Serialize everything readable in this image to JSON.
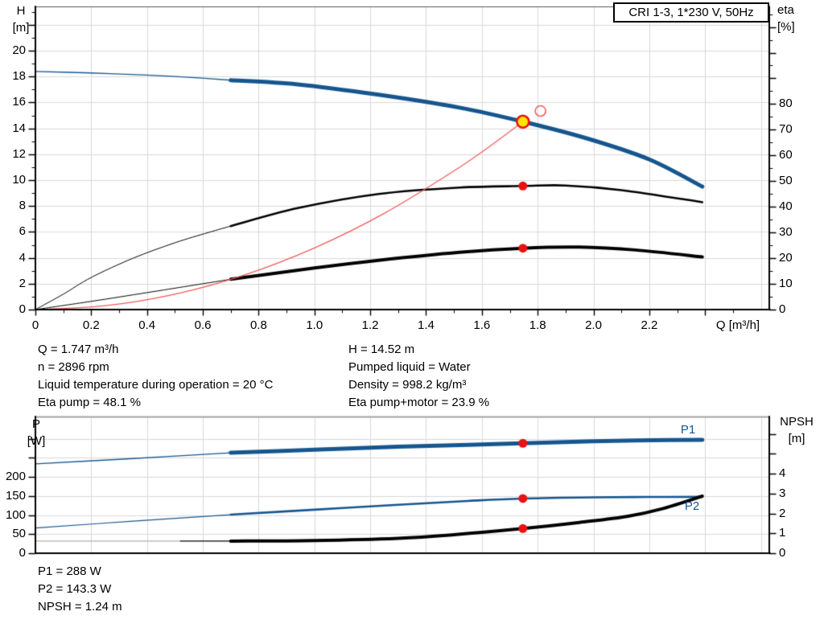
{
  "title_box": {
    "text": "CRI 1-3, 1*230 V, 50Hz"
  },
  "info_panel_top": {
    "left": [
      "Q = 1.747 m³/h",
      "n = 2896 rpm",
      "Liquid temperature during operation = 20 °C",
      "Eta pump = 48.1 %"
    ],
    "right": [
      "H = 14.52 m",
      "Pumped liquid = Water",
      "Density = 998.2 kg/m³",
      "Eta pump+motor = 23.9 %"
    ]
  },
  "info_panel_bottom": {
    "lines": [
      "P1 = 288 W",
      "P2 = 143.3 W",
      "NPSH = 1.24 m"
    ]
  },
  "colors": {
    "blue": "#16568f",
    "black": "#000000",
    "red": "#ef5a5a",
    "dot_red": "#e81212",
    "dot_yellow": "#ffe600",
    "gray": "#9b9b9b",
    "grid": "#d9d9d9",
    "axis": "#000000"
  },
  "chart_data": [
    {
      "type": "line",
      "name": "qh-efficiency-chart",
      "x_axis": {
        "label": "Q [m³/h]",
        "min": 0,
        "max": 2.63,
        "major_ticks": [
          0,
          0.2,
          0.4,
          0.6,
          0.8,
          1.0,
          1.2,
          1.4,
          1.6,
          1.8,
          2.0,
          2.2,
          2.4
        ],
        "minor_ticks": [
          0.1,
          0.3,
          0.5,
          0.7,
          0.9,
          1.1,
          1.3,
          1.5,
          1.7,
          1.9,
          2.1,
          2.3,
          2.5
        ],
        "grid": [
          0.2,
          0.4,
          0.6,
          0.8,
          1.0,
          1.2,
          1.4,
          1.6,
          1.8,
          2.0,
          2.2,
          2.4,
          2.6
        ],
        "tick_labels": [
          [
            "0",
            0
          ],
          [
            "0.2",
            0.2
          ],
          [
            "0.4",
            0.4
          ],
          [
            "0.6",
            0.6
          ],
          [
            "0.8",
            0.8
          ],
          [
            "1.0",
            1.0
          ],
          [
            "1.2",
            1.2
          ],
          [
            "1.4",
            1.4
          ],
          [
            "1.6",
            1.6
          ],
          [
            "1.8",
            1.8
          ],
          [
            "2.0",
            2.0
          ],
          [
            "2.2",
            2.2
          ]
        ]
      },
      "y_left": {
        "label": "H [m]",
        "label_lines": [
          "H",
          "[m]"
        ],
        "min": 0,
        "max": 23.42,
        "major_ticks": [
          0,
          2,
          4,
          6,
          8,
          10,
          12,
          14,
          16,
          18,
          20,
          22
        ],
        "minor_ticks": [
          1,
          3,
          5,
          7,
          9,
          11,
          13,
          15,
          17,
          19,
          21,
          23
        ],
        "grid": [
          2,
          4,
          6,
          8,
          10,
          12,
          14,
          16,
          18,
          20,
          22
        ],
        "tick_labels": [
          [
            "0",
            0
          ],
          [
            "2",
            2
          ],
          [
            "4",
            4
          ],
          [
            "6",
            6
          ],
          [
            "8",
            8
          ],
          [
            "10",
            10
          ],
          [
            "12",
            12
          ],
          [
            "14",
            14
          ],
          [
            "16",
            16
          ],
          [
            "18",
            18
          ],
          [
            "20",
            20
          ]
        ]
      },
      "y_right": {
        "label": "eta [%]",
        "label_lines": [
          "eta",
          "[%]"
        ],
        "min": 0,
        "max": 118,
        "major_ticks": [
          0,
          10,
          20,
          30,
          40,
          50,
          60,
          70,
          80,
          90,
          100,
          110
        ],
        "minor_ticks": [
          5,
          15,
          25,
          35,
          45,
          55,
          65,
          75,
          85,
          95,
          105,
          115
        ],
        "tick_labels": [
          [
            "0",
            0
          ],
          [
            "10",
            10
          ],
          [
            "20",
            20
          ],
          [
            "30",
            30
          ],
          [
            "40",
            40
          ],
          [
            "50",
            50
          ],
          [
            "60",
            60
          ],
          [
            "70",
            70
          ],
          [
            "80",
            80
          ]
        ]
      },
      "series": [
        {
          "name": "pump-head-curve",
          "axis": "left",
          "color_key": "blue",
          "segments": [
            {
              "width": 1.3,
              "points": [
                [
                  0,
                  18.4
                ],
                [
                  0.2,
                  18.28
                ],
                [
                  0.4,
                  18.12
                ],
                [
                  0.55,
                  17.95
                ],
                [
                  0.7,
                  17.72
                ]
              ]
            },
            {
              "width": 5,
              "points": [
                [
                  0.7,
                  17.72
                ],
                [
                  0.94,
                  17.4
                ],
                [
                  1.23,
                  16.6
                ],
                [
                  1.52,
                  15.6
                ],
                [
                  1.747,
                  14.52
                ],
                [
                  1.98,
                  13.2
                ],
                [
                  2.2,
                  11.6
                ],
                [
                  2.39,
                  9.5
                ]
              ]
            }
          ]
        },
        {
          "name": "eta-pump-curve",
          "axis": "right",
          "color_key": "black",
          "segments": [
            {
              "width": 1,
              "points": [
                [
                  0,
                  0
                ],
                [
                  0.1,
                  6
                ],
                [
                  0.2,
                  12.5
                ],
                [
                  0.35,
                  20
                ],
                [
                  0.5,
                  26
                ],
                [
                  0.62,
                  30
                ],
                [
                  0.7,
                  32.5
                ]
              ]
            },
            {
              "width": 2.6,
              "points": [
                [
                  0.7,
                  32.5
                ],
                [
                  0.94,
                  39.5
                ],
                [
                  1.23,
                  45
                ],
                [
                  1.52,
                  47.5
                ],
                [
                  1.747,
                  48.1
                ],
                [
                  1.9,
                  48.3
                ],
                [
                  2.1,
                  46.5
                ],
                [
                  2.39,
                  41.8
                ]
              ]
            }
          ]
        },
        {
          "name": "eta-pump-motor-curve",
          "axis": "right",
          "color_key": "black",
          "segments": [
            {
              "width": 1,
              "points": [
                [
                  0,
                  0
                ],
                [
                  0.2,
                  3.2
                ],
                [
                  0.4,
                  6.6
                ],
                [
                  0.55,
                  9.2
                ],
                [
                  0.7,
                  11.8
                ]
              ]
            },
            {
              "width": 4,
              "points": [
                [
                  0.7,
                  11.8
                ],
                [
                  1.0,
                  16.2
                ],
                [
                  1.23,
                  19.2
                ],
                [
                  1.52,
                  22.3
                ],
                [
                  1.747,
                  23.9
                ],
                [
                  1.95,
                  24.3
                ],
                [
                  2.15,
                  23.2
                ],
                [
                  2.39,
                  20.5
                ]
              ]
            }
          ]
        },
        {
          "name": "system-curve",
          "axis": "left",
          "color_key": "red",
          "segments": [
            {
              "width": 1.2,
              "points": [
                [
                  0,
                  0
                ],
                [
                  0.25,
                  0.3
                ],
                [
                  0.5,
                  1.19
                ],
                [
                  0.75,
                  2.68
                ],
                [
                  1.0,
                  4.76
                ],
                [
                  1.25,
                  7.43
                ],
                [
                  1.5,
                  10.71
                ],
                [
                  1.65,
                  12.95
                ],
                [
                  1.747,
                  14.52
                ]
              ]
            }
          ]
        }
      ],
      "markers": [
        {
          "name": "duty-point-eta-pump",
          "shape": "dot",
          "axis": "right",
          "q": 1.747,
          "v": 48.1
        },
        {
          "name": "duty-point-eta-pump-motor",
          "shape": "dot",
          "axis": "right",
          "q": 1.747,
          "v": 23.9
        },
        {
          "name": "actual-duty-point",
          "shape": "ring-dot",
          "axis": "left",
          "q": 1.747,
          "v": 14.52
        },
        {
          "name": "requested-duty-point",
          "shape": "open-circle",
          "axis": "left",
          "q": 1.81,
          "v": 15.34
        }
      ]
    },
    {
      "type": "line",
      "name": "power-npsh-chart",
      "x_axis": {
        "min": 0,
        "max": 2.63,
        "grid": [
          0.2,
          0.4,
          0.6,
          0.8,
          1.0,
          1.2,
          1.4,
          1.6,
          1.8,
          2.0,
          2.2,
          2.4,
          2.6
        ]
      },
      "y_left": {
        "label": "P [W]",
        "label_lines": [
          "P",
          "[W]"
        ],
        "min": 0,
        "max": 358,
        "major_ticks": [
          0,
          50,
          100,
          150,
          200,
          250,
          300
        ],
        "minor_ticks": [],
        "grid": [
          50,
          100,
          150,
          200,
          250,
          300
        ],
        "tick_labels": [
          [
            "0",
            0
          ],
          [
            "50",
            50
          ],
          [
            "100",
            100
          ],
          [
            "150",
            150
          ],
          [
            "200",
            200
          ]
        ]
      },
      "y_right": {
        "label": "NPSH [m]",
        "label_lines": [
          "NPSH",
          "[m]"
        ],
        "min": 0,
        "max": 6.87,
        "major_ticks": [
          0,
          1,
          2,
          3,
          4,
          5,
          6
        ],
        "minor_ticks": [],
        "tick_labels": [
          [
            "0",
            0
          ],
          [
            "1",
            1
          ],
          [
            "2",
            2
          ],
          [
            "3",
            3
          ],
          [
            "4",
            4
          ]
        ]
      },
      "labels": {
        "p1": "P1",
        "p2": "P2"
      },
      "series": [
        {
          "name": "p1-power-curve",
          "axis": "left",
          "color_key": "blue",
          "segments": [
            {
              "width": 1.3,
              "points": [
                [
                  0,
                  234
                ],
                [
                  0.35,
                  248
                ],
                [
                  0.7,
                  263
                ]
              ]
            },
            {
              "width": 5,
              "points": [
                [
                  0.7,
                  263
                ],
                [
                  1.0,
                  271
                ],
                [
                  1.3,
                  279
                ],
                [
                  1.55,
                  284
                ],
                [
                  1.747,
                  288
                ],
                [
                  2.0,
                  293
                ],
                [
                  2.2,
                  296
                ],
                [
                  2.39,
                  297
                ]
              ]
            }
          ]
        },
        {
          "name": "p2-power-curve",
          "axis": "left",
          "color_key": "blue",
          "segments": [
            {
              "width": 1.2,
              "points": [
                [
                  0,
                  66
                ],
                [
                  0.35,
                  84
                ],
                [
                  0.7,
                  101
                ]
              ]
            },
            {
              "width": 2.6,
              "points": [
                [
                  0.7,
                  101
                ],
                [
                  1.0,
                  114
                ],
                [
                  1.3,
                  127
                ],
                [
                  1.55,
                  137
                ],
                [
                  1.747,
                  143.3
                ],
                [
                  2.0,
                  146.5
                ],
                [
                  2.2,
                  147.3
                ],
                [
                  2.39,
                  147.6
                ]
              ]
            }
          ]
        },
        {
          "name": "npsh-curve",
          "axis": "right",
          "color_key": "black",
          "segments": [
            {
              "width": 1,
              "color_key": "gray",
              "points": [
                [
                  0,
                  0.61
                ],
                [
                  0.52,
                  0.61
                ]
              ]
            },
            {
              "width": 1.2,
              "points": [
                [
                  0.52,
                  0.61
                ],
                [
                  0.7,
                  0.61
                ]
              ]
            },
            {
              "width": 4,
              "points": [
                [
                  0.7,
                  0.61
                ],
                [
                  1.0,
                  0.64
                ],
                [
                  1.3,
                  0.75
                ],
                [
                  1.5,
                  0.93
                ],
                [
                  1.747,
                  1.24
                ],
                [
                  1.95,
                  1.55
                ],
                [
                  2.12,
                  1.85
                ],
                [
                  2.25,
                  2.25
                ],
                [
                  2.39,
                  2.87
                ]
              ]
            }
          ]
        }
      ],
      "markers": [
        {
          "name": "duty-point-p1",
          "shape": "dot",
          "axis": "left",
          "q": 1.747,
          "v": 288
        },
        {
          "name": "duty-point-p2",
          "shape": "dot",
          "axis": "left",
          "q": 1.747,
          "v": 143.3
        },
        {
          "name": "duty-point-npsh",
          "shape": "dot",
          "axis": "right",
          "q": 1.747,
          "v": 1.24
        }
      ]
    }
  ]
}
